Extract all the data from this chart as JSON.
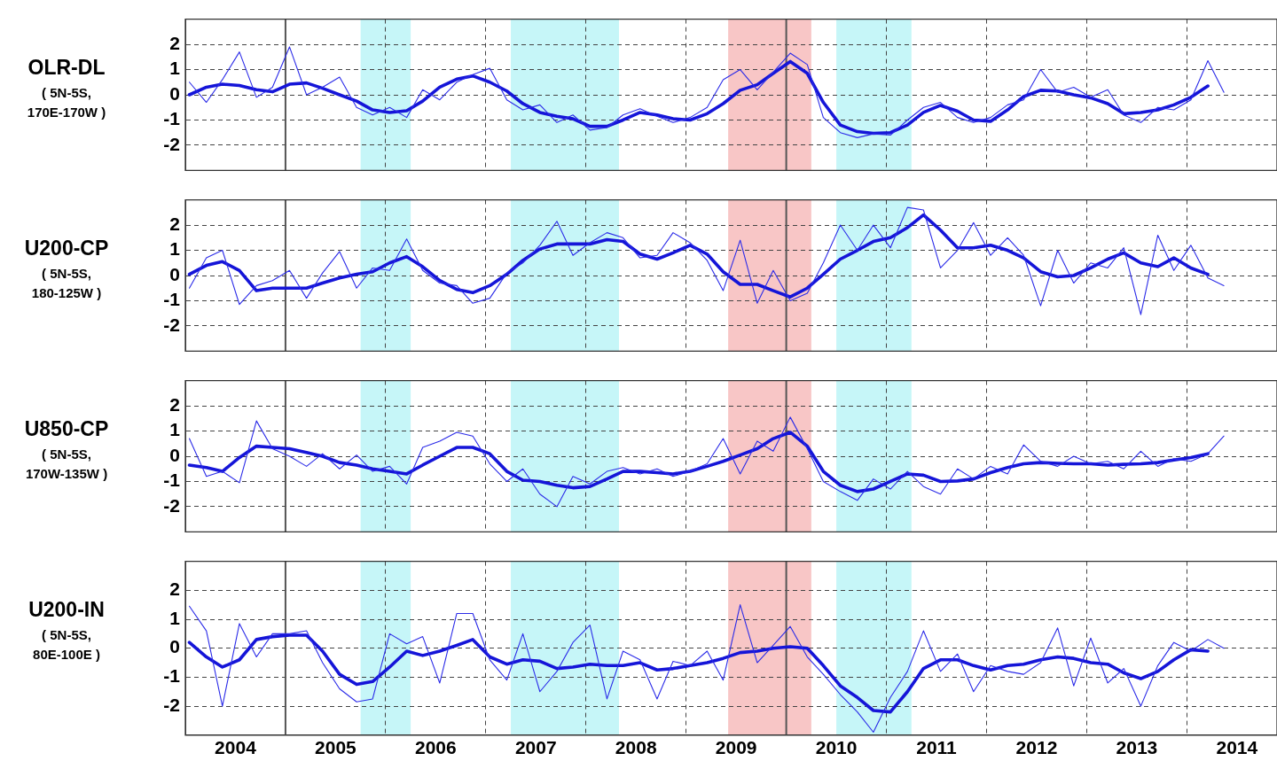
{
  "chart_data": [
    {
      "type": "line",
      "ylabel": "OLR-DL",
      "annotations": [
        "( 5N-5S, 170E-170W )"
      ],
      "xlim": [
        2004,
        2014.9
      ],
      "ylim": [
        -3,
        3
      ],
      "yticks": [
        -2,
        -1,
        0,
        1,
        2
      ],
      "grid": true,
      "tick_labels": "y",
      "xticks": [
        {
          "value": 2006,
          "label": null
        },
        {
          "value": 2007,
          "label": null
        },
        {
          "value": 2008,
          "label": null
        },
        {
          "value": 2009,
          "label": null
        },
        {
          "value": 2011,
          "label": null
        },
        {
          "value": 2012,
          "label": null
        },
        {
          "value": 2013,
          "label": null
        },
        {
          "value": 2014,
          "label": null
        }
      ],
      "ref_lines": [
        {
          "axis": "x",
          "value": 2005,
          "color": "#555555"
        },
        {
          "axis": "x",
          "value": 2010,
          "color": "#555555"
        }
      ],
      "bands": [
        {
          "axis": "x",
          "from": 2005.75,
          "to": 2006.25,
          "color": "#c6f6f8"
        },
        {
          "axis": "x",
          "from": 2007.25,
          "to": 2008.33,
          "color": "#c6f6f8"
        },
        {
          "axis": "x",
          "from": 2009.42,
          "to": 2010.25,
          "color": "#f8c6c6"
        },
        {
          "axis": "x",
          "from": 2010.5,
          "to": 2011.25,
          "color": "#c6f6f8"
        }
      ],
      "x": [
        2004.04,
        2004.21,
        2004.37,
        2004.54,
        2004.71,
        2004.87,
        2005.04,
        2005.21,
        2005.37,
        2005.54,
        2005.71,
        2005.87,
        2006.04,
        2006.21,
        2006.37,
        2006.54,
        2006.71,
        2006.87,
        2007.04,
        2007.21,
        2007.37,
        2007.54,
        2007.71,
        2007.87,
        2008.04,
        2008.21,
        2008.37,
        2008.54,
        2008.71,
        2008.87,
        2009.04,
        2009.21,
        2009.37,
        2009.54,
        2009.71,
        2009.87,
        2010.04,
        2010.21,
        2010.37,
        2010.54,
        2010.71,
        2010.87,
        2011.04,
        2011.21,
        2011.37,
        2011.54,
        2011.71,
        2011.87,
        2012.04,
        2012.21,
        2012.37,
        2012.54,
        2012.71,
        2012.87,
        2013.04,
        2013.21,
        2013.37,
        2013.54,
        2013.71,
        2013.87,
        2014.04,
        2014.21,
        2014.37
      ],
      "series": [
        {
          "color": "#2b2be8",
          "values": [
            0.5,
            -0.3,
            0.6,
            1.7,
            -0.1,
            0.3,
            1.9,
            0.0,
            0.3,
            0.7,
            -0.5,
            -0.8,
            -0.5,
            -0.9,
            0.2,
            -0.2,
            0.5,
            0.8,
            1.05,
            -0.2,
            -0.6,
            -0.4,
            -1.1,
            -0.8,
            -1.4,
            -1.3,
            -0.8,
            -0.55,
            -0.85,
            -1.1,
            -0.9,
            -0.5,
            0.6,
            1.0,
            0.2,
            0.9,
            1.65,
            1.2,
            -0.9,
            -1.5,
            -1.7,
            -1.55,
            -1.6,
            -1.0,
            -0.5,
            -0.3,
            -0.9,
            -1.1,
            -0.9,
            -0.4,
            -0.2,
            1.0,
            0.1,
            0.3,
            -0.1,
            0.2,
            -0.8,
            -1.1,
            -0.5,
            -0.6,
            -0.2,
            1.35,
            0.1
          ]
        },
        {
          "color": "#1515d8",
          "values": [
            0,
            0.3,
            0.42,
            0.37,
            0.2,
            0.12,
            0.42,
            0.47,
            0.26,
            0.0,
            -0.25,
            -0.6,
            -0.7,
            -0.63,
            -0.25,
            0.3,
            0.62,
            0.75,
            0.5,
            0.15,
            -0.35,
            -0.7,
            -0.85,
            -0.95,
            -1.25,
            -1.25,
            -1.0,
            -0.7,
            -0.8,
            -0.95,
            -1.0,
            -0.75,
            -0.35,
            0.18,
            0.4,
            0.85,
            1.32,
            0.85,
            -0.3,
            -1.2,
            -1.46,
            -1.53,
            -1.5,
            -1.2,
            -0.7,
            -0.42,
            -0.65,
            -1.0,
            -1.05,
            -0.6,
            -0.07,
            0.18,
            0.15,
            0.0,
            -0.12,
            -0.35,
            -0.75,
            -0.7,
            -0.6,
            -0.4,
            -0.1,
            0.35,
            null
          ]
        }
      ]
    },
    {
      "type": "line",
      "ylabel": "U200-CP",
      "annotations": [
        "( 5N-5S, 180-125W )"
      ],
      "xlim": [
        2004,
        2014.9
      ],
      "ylim": [
        -3,
        3
      ],
      "yticks": [
        -2,
        -1,
        0,
        1,
        2
      ],
      "grid": true,
      "tick_labels": "y",
      "xticks": [
        {
          "value": 2006,
          "label": null
        },
        {
          "value": 2007,
          "label": null
        },
        {
          "value": 2008,
          "label": null
        },
        {
          "value": 2009,
          "label": null
        },
        {
          "value": 2011,
          "label": null
        },
        {
          "value": 2012,
          "label": null
        },
        {
          "value": 2013,
          "label": null
        },
        {
          "value": 2014,
          "label": null
        }
      ],
      "ref_lines": [
        {
          "axis": "x",
          "value": 2005,
          "color": "#555555"
        },
        {
          "axis": "x",
          "value": 2010,
          "color": "#555555"
        }
      ],
      "bands": [
        {
          "axis": "x",
          "from": 2005.75,
          "to": 2006.25,
          "color": "#c6f6f8"
        },
        {
          "axis": "x",
          "from": 2007.25,
          "to": 2008.33,
          "color": "#c6f6f8"
        },
        {
          "axis": "x",
          "from": 2009.42,
          "to": 2010.25,
          "color": "#f8c6c6"
        },
        {
          "axis": "x",
          "from": 2010.5,
          "to": 2011.25,
          "color": "#c6f6f8"
        }
      ],
      "x": [
        2004.04,
        2004.21,
        2004.37,
        2004.54,
        2004.71,
        2004.87,
        2005.04,
        2005.21,
        2005.37,
        2005.54,
        2005.71,
        2005.87,
        2006.04,
        2006.21,
        2006.37,
        2006.54,
        2006.71,
        2006.87,
        2007.04,
        2007.21,
        2007.37,
        2007.54,
        2007.71,
        2007.87,
        2008.04,
        2008.21,
        2008.37,
        2008.54,
        2008.71,
        2008.87,
        2009.04,
        2009.21,
        2009.37,
        2009.54,
        2009.71,
        2009.87,
        2010.04,
        2010.21,
        2010.37,
        2010.54,
        2010.71,
        2010.87,
        2011.04,
        2011.21,
        2011.37,
        2011.54,
        2011.71,
        2011.87,
        2012.04,
        2012.21,
        2012.37,
        2012.54,
        2012.71,
        2012.87,
        2013.04,
        2013.21,
        2013.37,
        2013.54,
        2013.71,
        2013.87,
        2014.04,
        2014.21,
        2014.37
      ],
      "series": [
        {
          "color": "#2b2be8",
          "values": [
            -0.5,
            0.7,
            1.0,
            -1.15,
            -0.4,
            -0.2,
            0.2,
            -0.9,
            0.1,
            0.95,
            -0.5,
            0.3,
            0.2,
            1.45,
            0.2,
            -0.3,
            -0.4,
            -1.1,
            -0.9,
            0.1,
            0.5,
            1.2,
            2.15,
            0.8,
            1.3,
            1.7,
            1.5,
            0.7,
            0.8,
            1.7,
            1.3,
            0.6,
            -0.6,
            1.4,
            -1.1,
            0.2,
            -1.0,
            -0.7,
            0.5,
            2.0,
            1.0,
            2.0,
            1.1,
            2.7,
            2.6,
            0.3,
            1.0,
            2.1,
            0.8,
            1.5,
            0.8,
            -1.2,
            1.0,
            -0.3,
            0.5,
            0.3,
            1.1,
            -1.55,
            1.6,
            0.2,
            1.2,
            -0.1,
            -0.4
          ]
        },
        {
          "color": "#1515d8",
          "values": [
            0.05,
            0.4,
            0.55,
            0.2,
            -0.6,
            -0.5,
            -0.5,
            -0.5,
            -0.3,
            -0.1,
            0.05,
            0.15,
            0.5,
            0.75,
            0.35,
            -0.2,
            -0.55,
            -0.68,
            -0.4,
            0.05,
            0.6,
            1.05,
            1.25,
            1.25,
            1.25,
            1.42,
            1.35,
            0.85,
            0.65,
            0.9,
            1.2,
            0.85,
            0.15,
            -0.35,
            -0.35,
            -0.6,
            -0.85,
            -0.5,
            0.05,
            0.65,
            1.0,
            1.35,
            1.5,
            1.9,
            2.4,
            1.8,
            1.1,
            1.1,
            1.2,
            1.0,
            0.7,
            0.15,
            -0.05,
            0.0,
            0.3,
            0.65,
            0.9,
            0.5,
            0.35,
            0.7,
            0.3,
            0.05,
            null
          ]
        }
      ]
    },
    {
      "type": "line",
      "ylabel": "U850-CP",
      "annotations": [
        "( 5N-5S, 170W-135W )"
      ],
      "xlim": [
        2004,
        2014.9
      ],
      "ylim": [
        -3,
        3
      ],
      "yticks": [
        -2,
        -1,
        0,
        1,
        2
      ],
      "grid": true,
      "tick_labels": "y",
      "xticks": [
        {
          "value": 2006,
          "label": null
        },
        {
          "value": 2007,
          "label": null
        },
        {
          "value": 2008,
          "label": null
        },
        {
          "value": 2009,
          "label": null
        },
        {
          "value": 2011,
          "label": null
        },
        {
          "value": 2012,
          "label": null
        },
        {
          "value": 2013,
          "label": null
        },
        {
          "value": 2014,
          "label": null
        }
      ],
      "ref_lines": [
        {
          "axis": "x",
          "value": 2005,
          "color": "#555555"
        },
        {
          "axis": "x",
          "value": 2010,
          "color": "#555555"
        }
      ],
      "bands": [
        {
          "axis": "x",
          "from": 2005.75,
          "to": 2006.25,
          "color": "#c6f6f8"
        },
        {
          "axis": "x",
          "from": 2007.25,
          "to": 2008.33,
          "color": "#c6f6f8"
        },
        {
          "axis": "x",
          "from": 2009.42,
          "to": 2010.25,
          "color": "#f8c6c6"
        },
        {
          "axis": "x",
          "from": 2010.5,
          "to": 2011.25,
          "color": "#c6f6f8"
        }
      ],
      "x": [
        2004.04,
        2004.21,
        2004.37,
        2004.54,
        2004.71,
        2004.87,
        2005.04,
        2005.21,
        2005.37,
        2005.54,
        2005.71,
        2005.87,
        2006.04,
        2006.21,
        2006.37,
        2006.54,
        2006.71,
        2006.87,
        2007.04,
        2007.21,
        2007.37,
        2007.54,
        2007.71,
        2007.87,
        2008.04,
        2008.21,
        2008.37,
        2008.54,
        2008.71,
        2008.87,
        2009.04,
        2009.21,
        2009.37,
        2009.54,
        2009.71,
        2009.87,
        2010.04,
        2010.21,
        2010.37,
        2010.54,
        2010.71,
        2010.87,
        2011.04,
        2011.21,
        2011.37,
        2011.54,
        2011.71,
        2011.87,
        2012.04,
        2012.21,
        2012.37,
        2012.54,
        2012.71,
        2012.87,
        2013.04,
        2013.21,
        2013.37,
        2013.54,
        2013.71,
        2013.87,
        2014.04,
        2014.21,
        2014.37
      ],
      "series": [
        {
          "color": "#2b2be8",
          "values": [
            0.7,
            -0.8,
            -0.6,
            -1.05,
            1.4,
            0.3,
            0.0,
            -0.4,
            0.1,
            -0.5,
            0.05,
            -0.6,
            -0.4,
            -1.1,
            0.35,
            0.6,
            0.95,
            0.8,
            -0.3,
            -1.0,
            -0.5,
            -1.5,
            -2.0,
            -0.8,
            -1.1,
            -0.6,
            -0.45,
            -0.7,
            -0.5,
            -0.8,
            -0.6,
            -0.3,
            0.7,
            -0.7,
            0.6,
            0.2,
            1.55,
            0.3,
            -1.0,
            -1.4,
            -1.75,
            -0.9,
            -1.3,
            -0.6,
            -1.2,
            -1.5,
            -0.5,
            -0.9,
            -0.4,
            -0.7,
            0.45,
            -0.2,
            -0.4,
            0.0,
            -0.3,
            -0.2,
            -0.5,
            0.2,
            -0.4,
            -0.1,
            -0.2,
            0.1,
            0.8
          ]
        },
        {
          "color": "#1515d8",
          "values": [
            -0.35,
            -0.45,
            -0.6,
            -0.05,
            0.4,
            0.35,
            0.3,
            0.15,
            0.0,
            -0.25,
            -0.35,
            -0.5,
            -0.6,
            -0.7,
            -0.35,
            0.0,
            0.35,
            0.35,
            0.1,
            -0.6,
            -0.95,
            -1.0,
            -1.15,
            -1.25,
            -1.2,
            -0.9,
            -0.6,
            -0.6,
            -0.65,
            -0.7,
            -0.6,
            -0.4,
            -0.2,
            0.05,
            0.3,
            0.7,
            0.95,
            0.4,
            -0.6,
            -1.15,
            -1.4,
            -1.3,
            -1.0,
            -0.7,
            -0.75,
            -1.0,
            -0.98,
            -0.9,
            -0.65,
            -0.45,
            -0.3,
            -0.25,
            -0.28,
            -0.3,
            -0.3,
            -0.35,
            -0.32,
            -0.3,
            -0.25,
            -0.15,
            -0.05,
            0.1,
            null
          ]
        }
      ]
    },
    {
      "type": "line",
      "ylabel": "U200-IN",
      "annotations": [
        "( 5N-5S, 80E-100E )"
      ],
      "xlim": [
        2004,
        2014.9
      ],
      "ylim": [
        -3,
        3
      ],
      "yticks": [
        -2,
        -1,
        0,
        1,
        2
      ],
      "grid": true,
      "xticks": [
        {
          "value": 2004.5,
          "label": "2004"
        },
        {
          "value": 2005.5,
          "label": "2005"
        },
        {
          "value": 2006,
          "label": null
        },
        {
          "value": 2006.5,
          "label": "2006"
        },
        {
          "value": 2007,
          "label": null
        },
        {
          "value": 2007.5,
          "label": "2007"
        },
        {
          "value": 2008,
          "label": null
        },
        {
          "value": 2008.5,
          "label": "2008"
        },
        {
          "value": 2009,
          "label": null
        },
        {
          "value": 2009.5,
          "label": "2009"
        },
        {
          "value": 2010.5,
          "label": "2010"
        },
        {
          "value": 2011,
          "label": null
        },
        {
          "value": 2011.5,
          "label": "2011"
        },
        {
          "value": 2012,
          "label": null
        },
        {
          "value": 2012.5,
          "label": "2012"
        },
        {
          "value": 2013,
          "label": null
        },
        {
          "value": 2013.5,
          "label": "2013"
        },
        {
          "value": 2014,
          "label": null
        },
        {
          "value": 2014.5,
          "label": "2014"
        }
      ],
      "ref_lines": [
        {
          "axis": "x",
          "value": 2005,
          "color": "#555555"
        },
        {
          "axis": "x",
          "value": 2010,
          "color": "#555555"
        }
      ],
      "bands": [
        {
          "axis": "x",
          "from": 2005.75,
          "to": 2006.25,
          "color": "#c6f6f8"
        },
        {
          "axis": "x",
          "from": 2007.25,
          "to": 2008.33,
          "color": "#c6f6f8"
        },
        {
          "axis": "x",
          "from": 2009.42,
          "to": 2010.25,
          "color": "#f8c6c6"
        },
        {
          "axis": "x",
          "from": 2010.5,
          "to": 2011.25,
          "color": "#c6f6f8"
        }
      ],
      "x": [
        2004.04,
        2004.21,
        2004.37,
        2004.54,
        2004.71,
        2004.87,
        2005.04,
        2005.21,
        2005.37,
        2005.54,
        2005.71,
        2005.87,
        2006.04,
        2006.21,
        2006.37,
        2006.54,
        2006.71,
        2006.87,
        2007.04,
        2007.21,
        2007.37,
        2007.54,
        2007.71,
        2007.87,
        2008.04,
        2008.21,
        2008.37,
        2008.54,
        2008.71,
        2008.87,
        2009.04,
        2009.21,
        2009.37,
        2009.54,
        2009.71,
        2009.87,
        2010.04,
        2010.21,
        2010.37,
        2010.54,
        2010.71,
        2010.87,
        2011.04,
        2011.21,
        2011.37,
        2011.54,
        2011.71,
        2011.87,
        2012.04,
        2012.21,
        2012.37,
        2012.54,
        2012.71,
        2012.87,
        2013.04,
        2013.21,
        2013.37,
        2013.54,
        2013.71,
        2013.87,
        2014.04,
        2014.21,
        2014.37
      ],
      "series": [
        {
          "color": "#2b2be8",
          "values": [
            1.45,
            0.6,
            -2.0,
            0.85,
            -0.3,
            0.5,
            0.5,
            0.6,
            -0.5,
            -1.4,
            -1.85,
            -1.75,
            0.5,
            0.15,
            0.4,
            -1.2,
            1.2,
            1.2,
            -0.4,
            -1.1,
            0.5,
            -1.5,
            -0.8,
            0.2,
            0.8,
            -1.75,
            -0.1,
            -0.4,
            -1.75,
            -0.45,
            -0.6,
            -0.1,
            -1.1,
            1.5,
            -0.5,
            0.1,
            0.75,
            -0.3,
            -0.9,
            -1.6,
            -2.2,
            -2.9,
            -1.7,
            -0.8,
            0.6,
            -0.8,
            -0.2,
            -1.5,
            -0.6,
            -0.8,
            -0.9,
            -0.5,
            0.7,
            -1.3,
            0.35,
            -1.2,
            -0.7,
            -2.0,
            -0.6,
            0.2,
            -0.1,
            0.3,
            0.0
          ]
        },
        {
          "color": "#1515d8",
          "values": [
            0.2,
            -0.3,
            -0.65,
            -0.4,
            0.3,
            0.4,
            0.45,
            0.45,
            -0.1,
            -0.9,
            -1.25,
            -1.15,
            -0.65,
            -0.1,
            -0.25,
            -0.1,
            0.1,
            0.3,
            -0.3,
            -0.55,
            -0.4,
            -0.45,
            -0.7,
            -0.65,
            -0.55,
            -0.6,
            -0.6,
            -0.5,
            -0.75,
            -0.7,
            -0.6,
            -0.5,
            -0.35,
            -0.15,
            -0.1,
            0.0,
            0.05,
            0.0,
            -0.6,
            -1.3,
            -1.7,
            -2.15,
            -2.2,
            -1.5,
            -0.7,
            -0.4,
            -0.4,
            -0.6,
            -0.75,
            -0.6,
            -0.55,
            -0.4,
            -0.3,
            -0.35,
            -0.5,
            -0.55,
            -0.85,
            -1.05,
            -0.8,
            -0.4,
            -0.05,
            -0.1,
            null
          ]
        }
      ]
    }
  ]
}
